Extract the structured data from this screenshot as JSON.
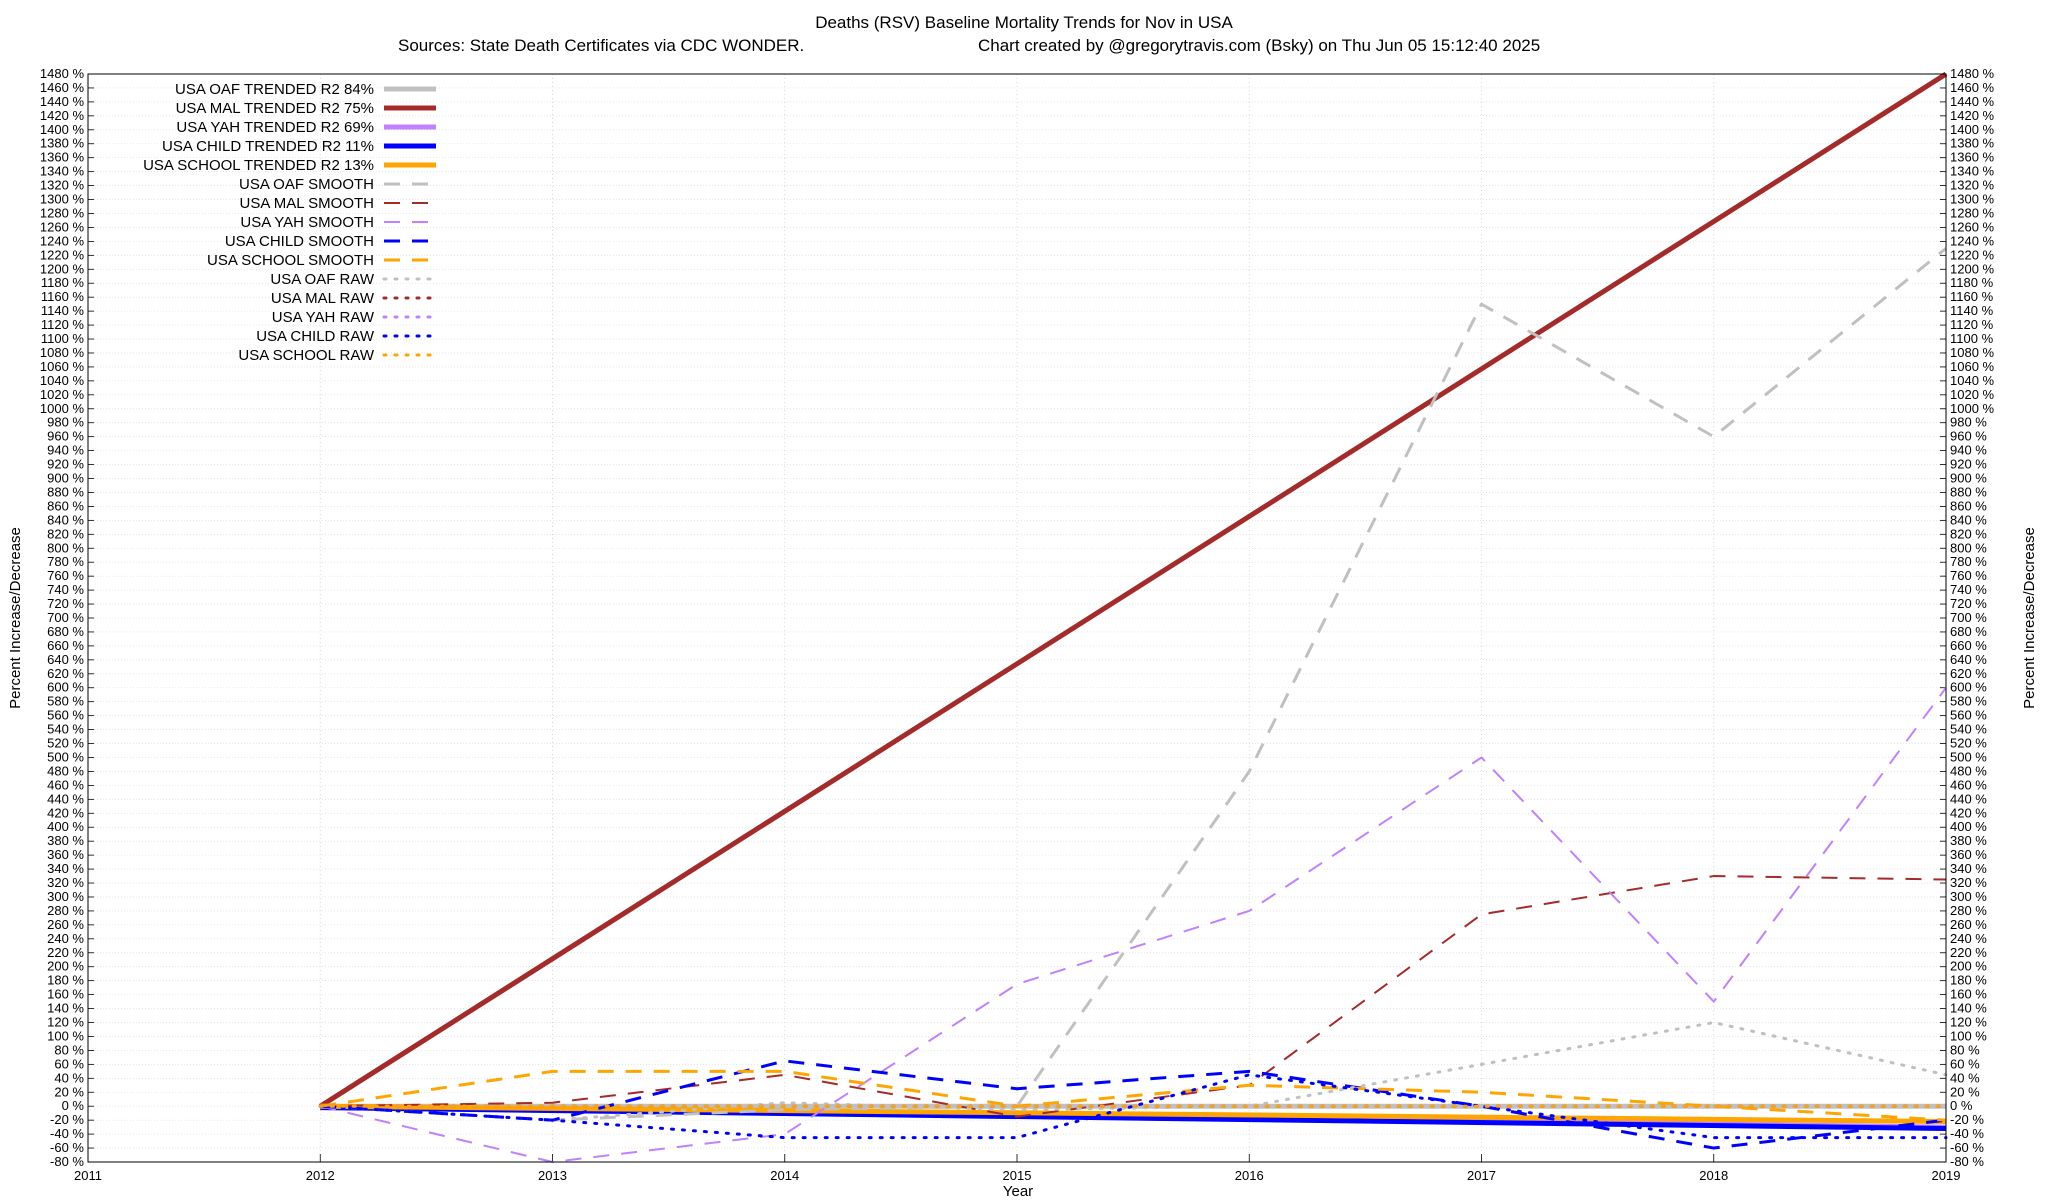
{
  "chart_data": {
    "type": "line",
    "title": "Deaths (RSV)  Baseline Mortality Trends for Nov in USA",
    "subtitle_left": "Sources: State Death Certificates via CDC WONDER.",
    "subtitle_right": "Chart created by @gregorytravis.com (Bsky) on Thu Jun 05 15:12:40 2025",
    "xlabel": "Year",
    "ylabel": "Percent Increase/Decrease",
    "ylabel_right": "Percent Increase/Decrease",
    "xlim": [
      2011,
      2019
    ],
    "ylim": [
      -80,
      1480
    ],
    "x_ticks": [
      2011,
      2012,
      2013,
      2014,
      2015,
      2016,
      2017,
      2018,
      2019
    ],
    "y_tick_step": 20,
    "y_tick_suffix": " %",
    "grid": true,
    "legend_position": "top-left",
    "series": [
      {
        "name": "USA OAF TRENDED R2  84%",
        "color": "#c0c0c0",
        "style": "solid",
        "width": 5,
        "x": [
          2012,
          2019
        ],
        "y": [
          0,
          0
        ]
      },
      {
        "name": "USA MAL TRENDED R2  75%",
        "color": "#a52a2a",
        "style": "solid",
        "width": 5,
        "x": [
          2012,
          2019
        ],
        "y": [
          0,
          1480
        ]
      },
      {
        "name": "USA YAH TRENDED R2  69%",
        "color": "#c080ff",
        "style": "solid",
        "width": 5,
        "x": [
          2012,
          2019
        ],
        "y": [
          0,
          -30
        ]
      },
      {
        "name": "USA CHILD TRENDED R2  11%",
        "color": "#0000ff",
        "style": "solid",
        "width": 5,
        "x": [
          2012,
          2019
        ],
        "y": [
          -2,
          -32
        ]
      },
      {
        "name": "USA SCHOOL TRENDED R2  13%",
        "color": "#ffa500",
        "style": "solid",
        "width": 5,
        "x": [
          2012,
          2019
        ],
        "y": [
          0,
          -22
        ]
      },
      {
        "name": "USA OAF SMOOTH",
        "color": "#c0c0c0",
        "style": "dash",
        "width": 3,
        "x": [
          2012,
          2013,
          2014,
          2015,
          2016,
          2017,
          2018,
          2019
        ],
        "y": [
          0,
          -20,
          -5,
          0,
          480,
          1150,
          960,
          1230
        ]
      },
      {
        "name": "USA MAL SMOOTH",
        "color": "#a52a2a",
        "style": "dash",
        "width": 2,
        "x": [
          2012,
          2013,
          2014,
          2015,
          2016,
          2017,
          2018,
          2019
        ],
        "y": [
          0,
          5,
          45,
          -15,
          30,
          275,
          330,
          325
        ]
      },
      {
        "name": "USA YAH SMOOTH",
        "color": "#c080ff",
        "style": "dash",
        "width": 2,
        "x": [
          2012,
          2013,
          2014,
          2015,
          2016,
          2017,
          2018,
          2019
        ],
        "y": [
          0,
          -80,
          -40,
          175,
          280,
          500,
          150,
          600
        ]
      },
      {
        "name": "USA CHILD SMOOTH",
        "color": "#0000ff",
        "style": "dash",
        "width": 3,
        "x": [
          2012,
          2013,
          2014,
          2015,
          2016,
          2017,
          2018,
          2019
        ],
        "y": [
          0,
          -20,
          65,
          25,
          50,
          0,
          -60,
          -20
        ]
      },
      {
        "name": "USA SCHOOL SMOOTH",
        "color": "#ffa500",
        "style": "dash",
        "width": 3,
        "x": [
          2012,
          2013,
          2014,
          2015,
          2016,
          2017,
          2018,
          2019
        ],
        "y": [
          0,
          50,
          50,
          0,
          30,
          20,
          0,
          -20
        ]
      },
      {
        "name": "USA OAF RAW",
        "color": "#c0c0c0",
        "style": "dot",
        "width": 3,
        "x": [
          2012,
          2013,
          2014,
          2015,
          2016,
          2017,
          2018,
          2019
        ],
        "y": [
          0,
          -20,
          5,
          -5,
          0,
          60,
          120,
          45
        ]
      },
      {
        "name": "USA MAL RAW",
        "color": "#a52a2a",
        "style": "dot",
        "width": 3,
        "x": [
          2012,
          2013,
          2014,
          2015,
          2016,
          2017,
          2018,
          2019
        ],
        "y": [
          0,
          0,
          0,
          0,
          0,
          0,
          0,
          0
        ]
      },
      {
        "name": "USA YAH RAW",
        "color": "#c080ff",
        "style": "dot",
        "width": 3,
        "x": [
          2012,
          2013,
          2014,
          2015,
          2016,
          2017,
          2018,
          2019
        ],
        "y": [
          0,
          0,
          0,
          0,
          0,
          0,
          0,
          0
        ]
      },
      {
        "name": "USA CHILD RAW",
        "color": "#0000ff",
        "style": "dot",
        "width": 3,
        "x": [
          2012,
          2013,
          2014,
          2015,
          2016,
          2017,
          2018,
          2019
        ],
        "y": [
          0,
          -20,
          -45,
          -45,
          45,
          0,
          -45,
          -45
        ]
      },
      {
        "name": "USA SCHOOL RAW",
        "color": "#ffa500",
        "style": "dot",
        "width": 3,
        "x": [
          2012,
          2013,
          2014,
          2015,
          2016,
          2017,
          2018,
          2019
        ],
        "y": [
          0,
          0,
          0,
          0,
          0,
          0,
          0,
          0
        ]
      }
    ]
  }
}
